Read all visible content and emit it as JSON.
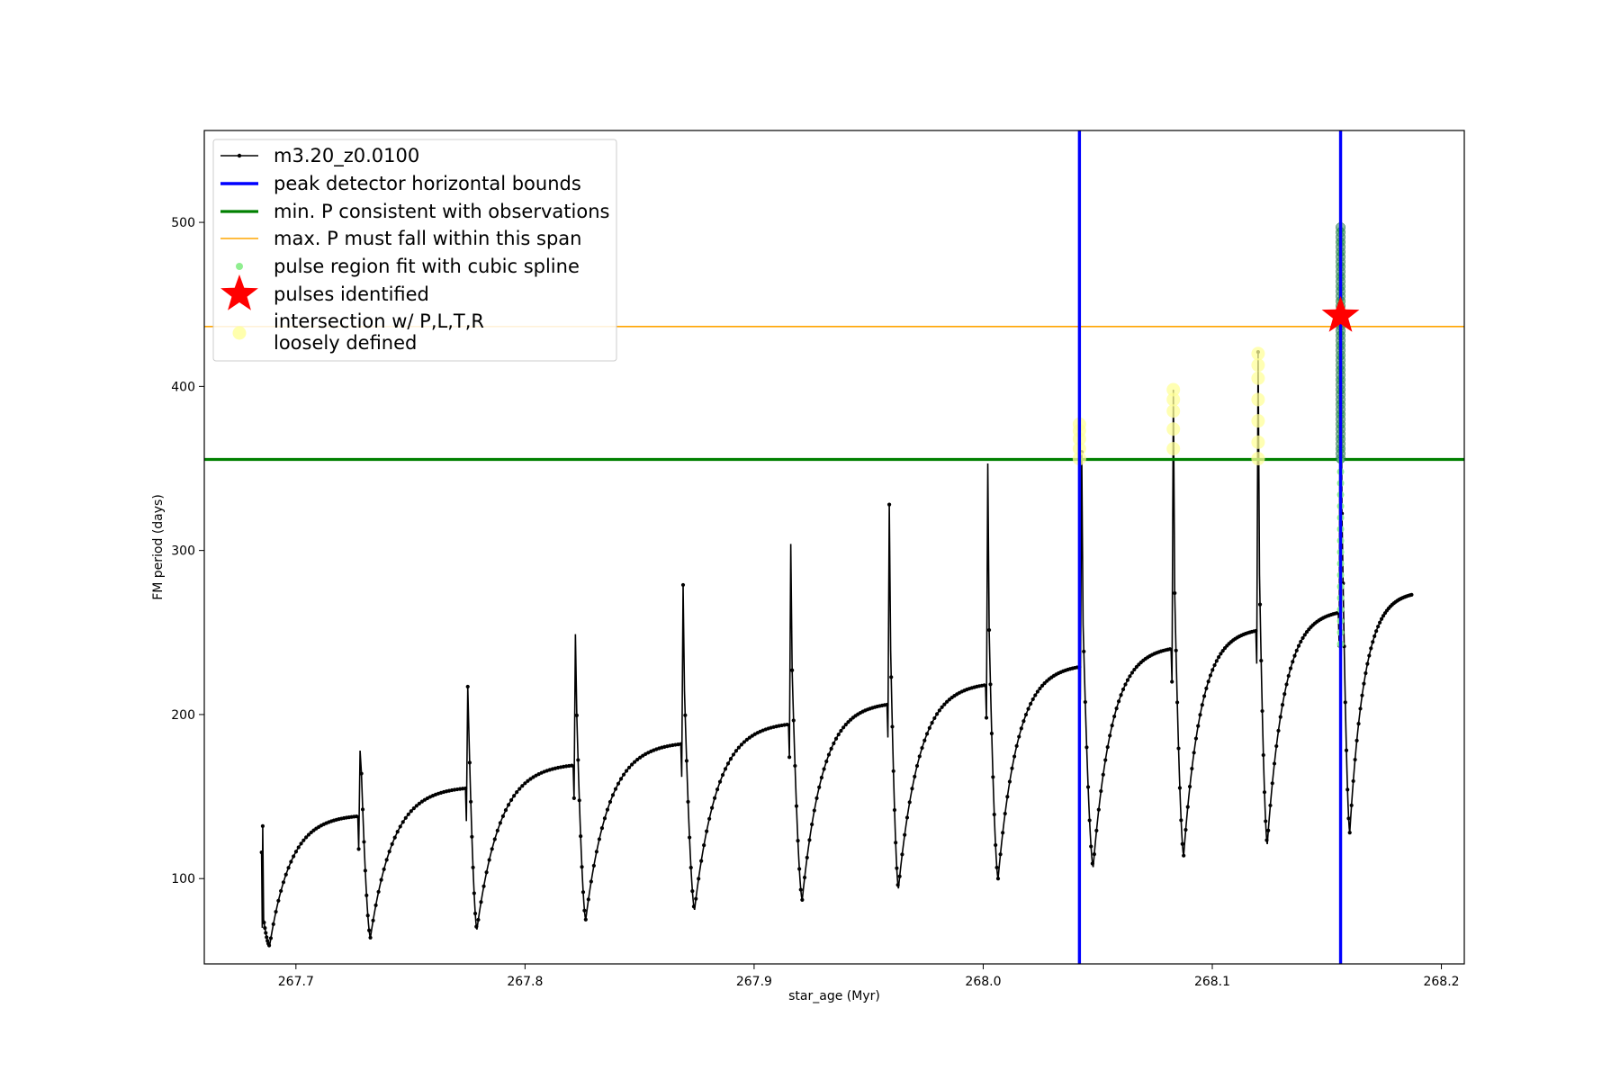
{
  "chart_data": {
    "type": "line",
    "xlabel": "star_age (Myr)",
    "ylabel": "FM period (days)",
    "xlim": [
      267.66,
      268.21
    ],
    "ylim": [
      48,
      556
    ],
    "xticks": [
      267.7,
      267.8,
      267.9,
      268.0,
      268.1,
      268.2
    ],
    "xtick_labels": [
      "267.7",
      "267.8",
      "267.9",
      "268.0",
      "268.1",
      "268.2"
    ],
    "yticks": [
      100,
      200,
      300,
      400,
      500
    ],
    "ytick_labels": [
      "100",
      "200",
      "300",
      "400",
      "500"
    ],
    "grid": false,
    "legend_position": "upper-left",
    "series": [
      {
        "name": "m3.20_z0.0100",
        "color": "#000000",
        "marker": "dot",
        "cycles": [
          {
            "x_start": 267.685,
            "y_start": 116,
            "x_spike": 267.6855,
            "y_spike": 132,
            "x_min": 267.6885,
            "y_min": 59,
            "x_end": 267.727,
            "y_end": 138,
            "y_spike_next": 178
          },
          {
            "x_start": 267.728,
            "y_spike": 178,
            "x_min": 267.7325,
            "y_min": 64,
            "x_end": 267.774,
            "y_end": 155,
            "y_spike_next": 217
          },
          {
            "x_start": 267.775,
            "y_spike": 217,
            "x_min": 267.779,
            "y_min": 69,
            "x_end": 267.821,
            "y_end": 169,
            "y_spike_next": 249
          },
          {
            "x_start": 267.822,
            "y_spike": 249,
            "x_min": 267.8265,
            "y_min": 75,
            "x_end": 267.868,
            "y_end": 182,
            "y_spike_next": 279
          },
          {
            "x_start": 267.869,
            "y_spike": 279,
            "x_min": 267.874,
            "y_min": 81,
            "x_end": 267.915,
            "y_end": 194,
            "y_spike_next": 304
          },
          {
            "x_start": 267.916,
            "y_spike": 304,
            "x_min": 267.921,
            "y_min": 87,
            "x_end": 267.958,
            "y_end": 206,
            "y_spike_next": 328
          },
          {
            "x_start": 267.959,
            "y_spike": 328,
            "x_min": 267.963,
            "y_min": 94,
            "x_end": 268.001,
            "y_end": 218,
            "y_spike_next": 353
          },
          {
            "x_start": 268.002,
            "y_spike": 353,
            "x_min": 268.0065,
            "y_min": 100,
            "x_end": 268.042,
            "y_end": 229,
            "y_spike_next": 360
          },
          {
            "x_start": 268.043,
            "y_spike": 360,
            "x_min": 268.048,
            "y_min": 107,
            "x_end": 268.082,
            "y_end": 240,
            "y_spike_next": 398
          },
          {
            "x_start": 268.083,
            "y_spike": 398,
            "x_min": 268.0875,
            "y_min": 114,
            "x_end": 268.119,
            "y_end": 251,
            "y_spike_next": 421
          },
          {
            "x_start": 268.12,
            "y_spike": 421,
            "x_min": 268.124,
            "y_min": 121,
            "x_end": 268.155,
            "y_end": 262,
            "y_spike_next": 495
          },
          {
            "x_start": 268.156,
            "y_spike": 495,
            "x_min": 268.16,
            "y_min": 128,
            "x_end": 268.187,
            "y_end": 273,
            "y_spike_next": null
          }
        ]
      },
      {
        "name": "peak detector horizontal bounds",
        "color": "#0000ff",
        "kind": "vline",
        "x": [
          268.042,
          268.156
        ]
      },
      {
        "name": "min. P consistent with observations",
        "color": "#008000",
        "kind": "hline",
        "y": 355.5
      },
      {
        "name": "max. P must fall within this span",
        "color": "#ffa500",
        "kind": "hline",
        "y": 436.5
      },
      {
        "name": "pulse region fit with cubic spline",
        "color": "#90ee90",
        "kind": "scatter",
        "x": 268.156,
        "y_range": [
          243,
          495
        ]
      },
      {
        "name": "pulses identified",
        "color": "#ff0000",
        "kind": "star",
        "points": [
          {
            "x": 268.156,
            "y": 443
          }
        ]
      },
      {
        "name": "intersection w/ P,L,T,R\nloosely defined",
        "color": "#ffff99",
        "kind": "scatter-large",
        "points": [
          {
            "x": 268.042,
            "y": 356
          },
          {
            "x": 268.042,
            "y": 362
          },
          {
            "x": 268.042,
            "y": 368
          },
          {
            "x": 268.042,
            "y": 373
          },
          {
            "x": 268.042,
            "y": 377
          },
          {
            "x": 268.083,
            "y": 362
          },
          {
            "x": 268.083,
            "y": 374
          },
          {
            "x": 268.083,
            "y": 385
          },
          {
            "x": 268.083,
            "y": 392
          },
          {
            "x": 268.083,
            "y": 398
          },
          {
            "x": 268.12,
            "y": 356
          },
          {
            "x": 268.12,
            "y": 366
          },
          {
            "x": 268.12,
            "y": 379
          },
          {
            "x": 268.12,
            "y": 392
          },
          {
            "x": 268.12,
            "y": 405
          },
          {
            "x": 268.12,
            "y": 413
          },
          {
            "x": 268.12,
            "y": 420
          }
        ]
      }
    ],
    "dark_green_cluster": {
      "x": 268.156,
      "y_range": [
        356,
        497
      ],
      "color": "#2e8b57"
    }
  }
}
